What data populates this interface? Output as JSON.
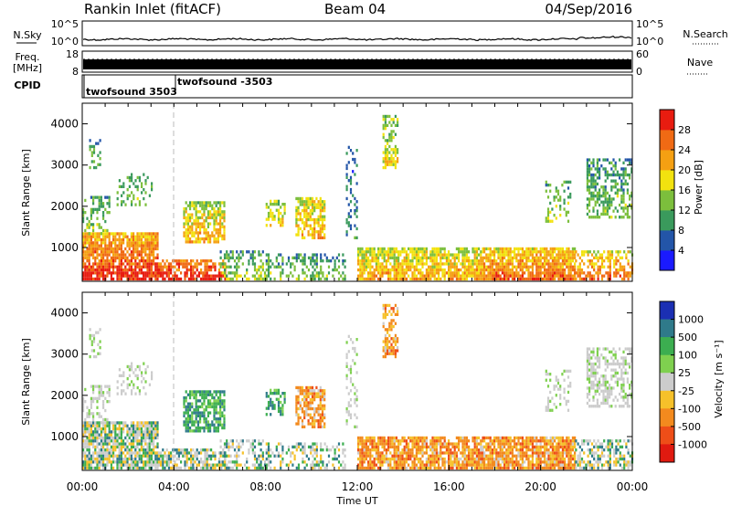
{
  "header": {
    "station": "Rankin Inlet (fitACF)",
    "beam": "Beam 04",
    "date": "04/Sep/2016"
  },
  "colors": {
    "power_scale": [
      "#1a1aff",
      "#2355a8",
      "#3a9a5c",
      "#7cbf3c",
      "#f2e20f",
      "#f5a012",
      "#f06a14",
      "#e81c10"
    ],
    "velocity_scale": [
      "#1b2fb3",
      "#2f7a8a",
      "#3cae50",
      "#7fd04f",
      "#cccccc",
      "#f6c12a",
      "#f38a1e",
      "#ee4e18",
      "#e01a10"
    ]
  },
  "chart_data": [
    {
      "type": "line",
      "name": "noise-panel",
      "left_label": "N.Sky",
      "right_label": "N.Search",
      "left_ticks": [
        "10^5",
        "10^0"
      ],
      "right_ticks": [
        "10^5",
        "10^0"
      ],
      "right_line_style": "dotted"
    },
    {
      "type": "line",
      "name": "frequency-panel",
      "left_label_1": "Freq.",
      "left_label_2": "[MHz]",
      "left_ticks": [
        "18",
        "8"
      ],
      "right_label": "Nave",
      "right_ticks": [
        "60",
        "0"
      ],
      "right_line_style": "dotted"
    },
    {
      "type": "table",
      "name": "cpid-panel",
      "label": "CPID",
      "programs": [
        {
          "name": "twofsound 3503",
          "start_hour": 0.0
        },
        {
          "name": "twofsound -3503",
          "start_hour": 4.1
        }
      ]
    },
    {
      "type": "heatmap",
      "name": "power-panel",
      "ylabel": "Slant Range [km]",
      "yticks": [
        1000,
        2000,
        3000,
        4000
      ],
      "ylim": [
        180,
        4500
      ],
      "xlim": [
        0,
        24
      ],
      "colorbar_label": "Power [dB]",
      "colorbar_ticks": [
        4,
        8,
        12,
        16,
        20,
        24,
        28
      ],
      "colorbar_range": [
        0,
        32
      ]
    },
    {
      "type": "heatmap",
      "name": "velocity-panel",
      "ylabel": "Slant Range [km]",
      "yticks": [
        1000,
        2000,
        3000,
        4000
      ],
      "ylim": [
        180,
        4500
      ],
      "xlim": [
        0,
        24
      ],
      "xlabel": "Time UT",
      "xticks": [
        "00:00",
        "04:00",
        "08:00",
        "12:00",
        "16:00",
        "20:00",
        "00:00"
      ],
      "colorbar_label": "Velocity [m s⁻¹]",
      "colorbar_ticks": [
        "1000",
        "500",
        "100",
        "25",
        "-25",
        "-100",
        "-500",
        "-1000"
      ]
    }
  ]
}
